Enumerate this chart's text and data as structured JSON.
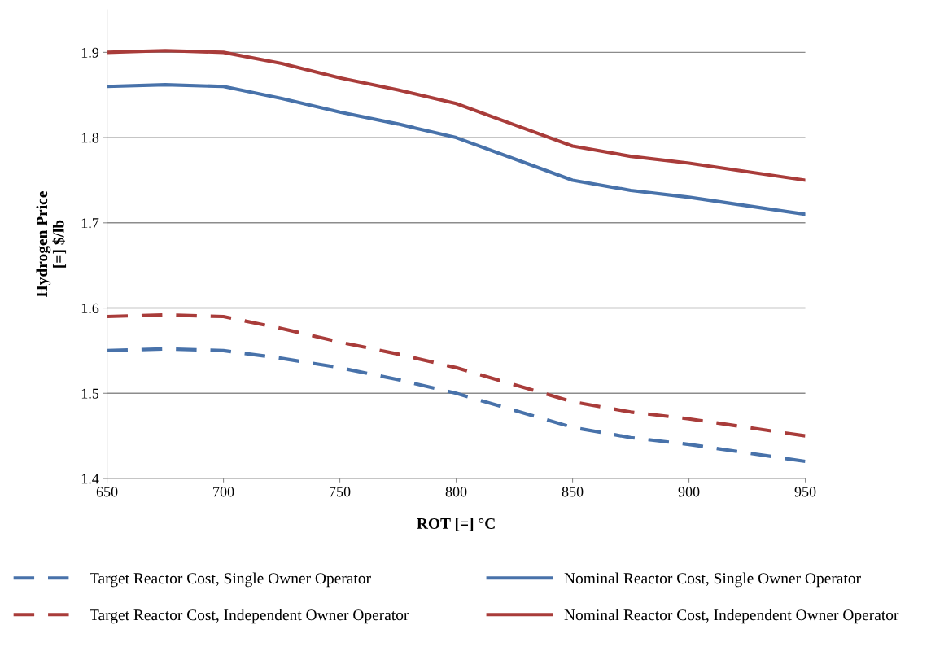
{
  "chart_data": {
    "type": "line",
    "xlabel": "ROT [=] °C",
    "ylabel": "Hydrogen Price\n[=] $/lb",
    "x": [
      650,
      675,
      700,
      725,
      750,
      775,
      800,
      825,
      850,
      875,
      900,
      925,
      950
    ],
    "series": [
      {
        "name": "Target Reactor Cost, Single Owner Operator",
        "color": "#4872aa",
        "line_style": "dashed",
        "values": [
          1.55,
          1.552,
          1.55,
          1.541,
          1.53,
          1.516,
          1.5,
          1.48,
          1.46,
          1.448,
          1.44,
          1.43,
          1.42
        ]
      },
      {
        "name": "Nominal Reactor Cost, Single Owner Operator",
        "color": "#4872aa",
        "line_style": "solid",
        "values": [
          1.86,
          1.862,
          1.86,
          1.846,
          1.83,
          1.816,
          1.8,
          1.775,
          1.75,
          1.738,
          1.73,
          1.72,
          1.71
        ]
      },
      {
        "name": "Target Reactor Cost, Independent Owner Operator",
        "color": "#a93c3a",
        "line_style": "dashed",
        "values": [
          1.59,
          1.592,
          1.59,
          1.576,
          1.56,
          1.546,
          1.53,
          1.51,
          1.49,
          1.478,
          1.47,
          1.46,
          1.45
        ]
      },
      {
        "name": "Nominal Reactor Cost, Independent Owner Operator",
        "color": "#a93c3a",
        "line_style": "solid",
        "values": [
          1.9,
          1.902,
          1.9,
          1.887,
          1.87,
          1.856,
          1.84,
          1.815,
          1.79,
          1.778,
          1.77,
          1.76,
          1.75
        ]
      }
    ],
    "xlim": [
      650,
      950
    ],
    "xticks": [
      650,
      700,
      750,
      800,
      850,
      900,
      950
    ],
    "ylim": [
      1.4,
      1.95
    ],
    "yticks": [
      1.4,
      1.5,
      1.6,
      1.7,
      1.8,
      1.9
    ],
    "grid": "y",
    "legend": "bottom",
    "marker": "none"
  }
}
